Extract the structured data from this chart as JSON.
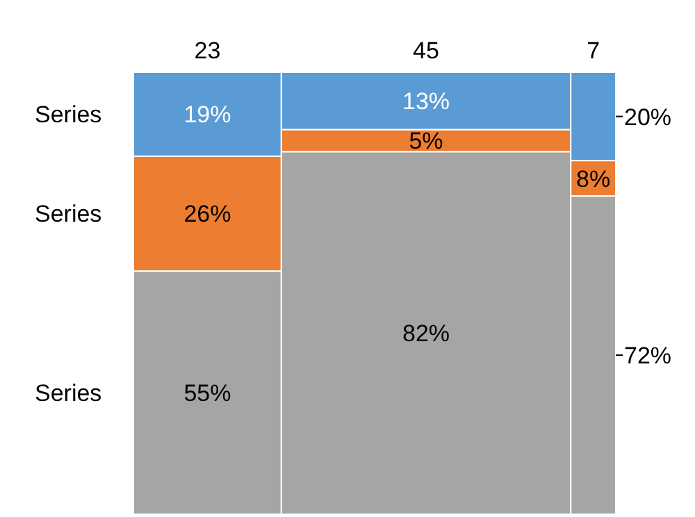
{
  "chart_data": {
    "type": "bar",
    "stacked": true,
    "categories": [
      "23",
      "45",
      "7"
    ],
    "series": [
      {
        "name": "Series",
        "color": "#5b9bd5",
        "values": [
          19,
          13,
          20
        ],
        "value_labels": [
          "19%",
          "13%",
          "20%"
        ]
      },
      {
        "name": "Series",
        "color": "#ed7d31",
        "values": [
          26,
          5,
          8
        ],
        "value_labels": [
          "26%",
          "5%",
          "8%"
        ]
      },
      {
        "name": "Series",
        "color": "#a5a5a5",
        "values": [
          55,
          82,
          72
        ],
        "value_labels": [
          "55%",
          "82%",
          "72%"
        ]
      }
    ]
  }
}
